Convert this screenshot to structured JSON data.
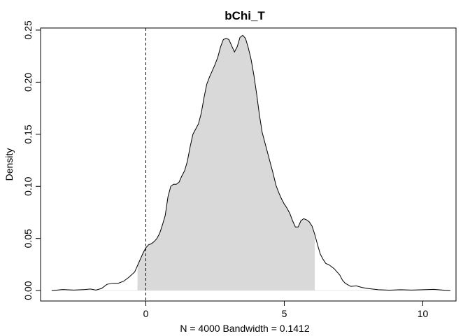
{
  "chart_data": {
    "type": "area",
    "title": "bChi_T",
    "xlabel": "N = 4000   Bandwidth = 0.1412",
    "ylabel": "Density",
    "xlim": [
      -3.8,
      11.2
    ],
    "ylim": [
      -0.01,
      0.252
    ],
    "xticks": [
      0,
      5,
      10
    ],
    "yticks": [
      0.0,
      0.05,
      0.1,
      0.15,
      0.2,
      0.25
    ],
    "xtick_labels": [
      "0",
      "5",
      "10"
    ],
    "ytick_labels": [
      "0.00",
      "0.05",
      "0.10",
      "0.15",
      "0.20",
      "0.25"
    ],
    "reference_line_x": 0,
    "shaded_interval": [
      -0.3,
      6.1
    ],
    "fill_color": "#d9d9d9",
    "grid": false,
    "series": [
      {
        "x": [
          -3.4,
          -3.0,
          -2.6,
          -2.2,
          -2.0,
          -1.8,
          -1.6,
          -1.4,
          -1.2,
          -1.0,
          -0.8,
          -0.6,
          -0.4,
          -0.3,
          -0.2,
          -0.1,
          0.0,
          0.1,
          0.2,
          0.3,
          0.4,
          0.5,
          0.6,
          0.7,
          0.8,
          0.9,
          1.0,
          1.1,
          1.2,
          1.3,
          1.4,
          1.5,
          1.6,
          1.7,
          1.8,
          1.9,
          2.0,
          2.1,
          2.2,
          2.3,
          2.4,
          2.5,
          2.6,
          2.7,
          2.8,
          2.9,
          3.0,
          3.1,
          3.2,
          3.3,
          3.4,
          3.5,
          3.6,
          3.7,
          3.8,
          3.9,
          4.0,
          4.1,
          4.2,
          4.3,
          4.4,
          4.5,
          4.6,
          4.7,
          4.8,
          4.9,
          5.0,
          5.1,
          5.2,
          5.3,
          5.4,
          5.5,
          5.6,
          5.7,
          5.8,
          5.9,
          6.0,
          6.1,
          6.2,
          6.3,
          6.4,
          6.5,
          6.6,
          6.7,
          6.8,
          6.9,
          7.0,
          7.1,
          7.2,
          7.4,
          7.6,
          7.8,
          8.0,
          8.4,
          8.8,
          9.2,
          9.6,
          10.0,
          10.4,
          10.8,
          11.0
        ],
        "y": [
          0.0,
          0.001,
          0.0005,
          0.001,
          0.0015,
          0.0005,
          0.002,
          0.006,
          0.007,
          0.007,
          0.009,
          0.013,
          0.018,
          0.024,
          0.03,
          0.036,
          0.041,
          0.044,
          0.045,
          0.047,
          0.05,
          0.055,
          0.063,
          0.072,
          0.09,
          0.1,
          0.102,
          0.102,
          0.104,
          0.11,
          0.115,
          0.124,
          0.138,
          0.15,
          0.155,
          0.16,
          0.17,
          0.185,
          0.198,
          0.205,
          0.211,
          0.217,
          0.224,
          0.234,
          0.241,
          0.242,
          0.241,
          0.235,
          0.229,
          0.234,
          0.243,
          0.245,
          0.242,
          0.233,
          0.222,
          0.207,
          0.189,
          0.169,
          0.152,
          0.142,
          0.132,
          0.122,
          0.112,
          0.101,
          0.094,
          0.088,
          0.083,
          0.079,
          0.074,
          0.067,
          0.061,
          0.061,
          0.067,
          0.069,
          0.068,
          0.066,
          0.062,
          0.054,
          0.044,
          0.035,
          0.03,
          0.026,
          0.025,
          0.023,
          0.021,
          0.018,
          0.015,
          0.01,
          0.007,
          0.004,
          0.0045,
          0.003,
          0.002,
          0.0008,
          0.0004,
          0.0008,
          0.0005,
          0.0008,
          0.0012,
          0.0003,
          0.0
        ]
      }
    ]
  }
}
